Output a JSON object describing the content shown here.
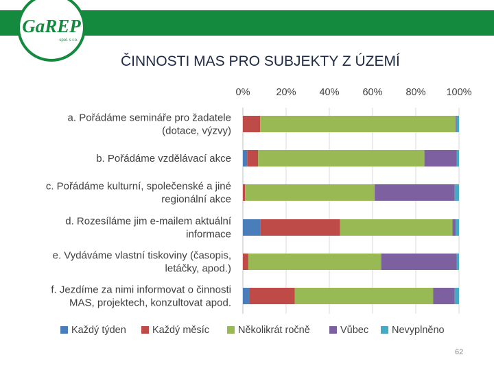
{
  "header": {
    "title": "ČINNOSTI MAS PRO SUBJEKTY Z ÚZEMÍ",
    "band_color": "#138a3e",
    "logo_text": "GaREP",
    "logo_subtext": "spol. s r.o."
  },
  "page_number": "62",
  "chart_data": {
    "type": "bar",
    "orientation": "horizontal",
    "stacked": "percent",
    "title": "",
    "xlabel": "",
    "ylabel": "",
    "xlim": [
      0,
      100
    ],
    "x_ticks": [
      "0%",
      "20%",
      "40%",
      "60%",
      "80%",
      "100%"
    ],
    "x_axis_position": "top",
    "grid": true,
    "legend_position": "bottom",
    "categories": [
      [
        "a. Pořádáme semináře pro žadatele",
        "(dotace, výzvy)"
      ],
      [
        "b. Pořádáme vzdělávací akce"
      ],
      [
        "c. Pořádáme kulturní, společenské a jiné",
        "regionální akce"
      ],
      [
        "d. Rozesíláme jim e-mailem aktuální",
        "informace"
      ],
      [
        "e. Vydáváme vlastní tiskoviny (časopis,",
        "letáčky, apod.)"
      ],
      [
        "f. Jezdíme za nimi informovat o činnosti",
        "MAS, projektech, konzultovat apod."
      ]
    ],
    "series": [
      {
        "name": "Každý týden",
        "color": "#4a7ebb",
        "values": [
          0,
          2,
          0,
          8,
          0,
          3
        ]
      },
      {
        "name": "Každý měsíc",
        "color": "#be4b48",
        "values": [
          8,
          5,
          1,
          37,
          2.5,
          21
        ]
      },
      {
        "name": "Několikrát ročně",
        "color": "#98b954",
        "values": [
          90.5,
          77,
          60,
          52,
          61.5,
          64
        ]
      },
      {
        "name": "Vůbec",
        "color": "#7d60a0",
        "values": [
          0.5,
          15,
          37,
          1.5,
          35,
          10
        ]
      },
      {
        "name": "Nevyplněno",
        "color": "#46aac5",
        "values": [
          1,
          1,
          2,
          1.5,
          1,
          2
        ]
      }
    ]
  }
}
